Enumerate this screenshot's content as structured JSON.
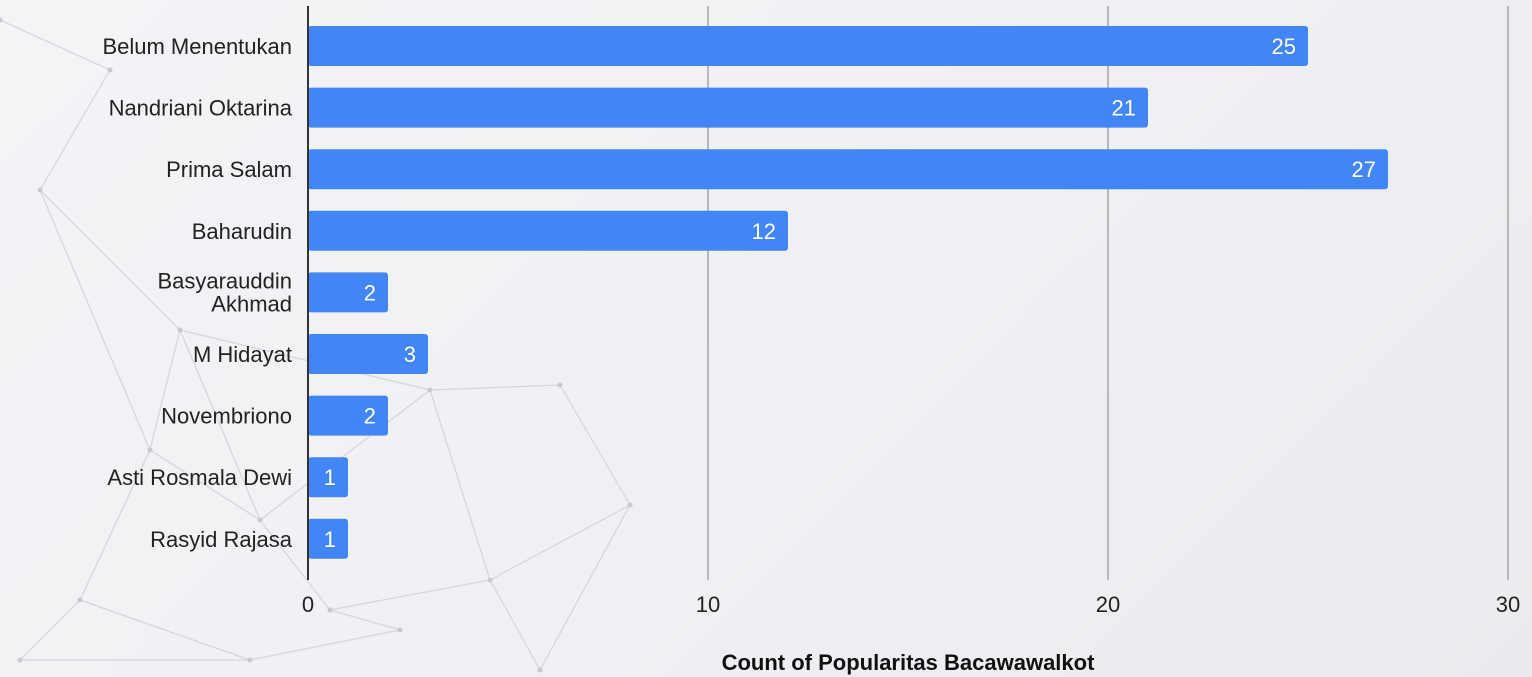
{
  "chart_data": {
    "type": "bar",
    "orientation": "horizontal",
    "categories": [
      "Belum Menentukan",
      "Nandriani Oktarina",
      "Prima Salam",
      "Baharudin",
      "Basyarauddin Akhmad",
      "M Hidayat",
      "Novembriono",
      "Asti Rosmala Dewi",
      "Rasyid Rajasa"
    ],
    "values": [
      25,
      21,
      27,
      12,
      2,
      3,
      2,
      1,
      1
    ],
    "xlabel": "Count of Popularitas Bacawawalkot",
    "ylabel": "",
    "xlim": [
      0,
      30
    ],
    "xticks": [
      0,
      10,
      20,
      30
    ],
    "grid": true,
    "data_labels": true,
    "bar_color": "#4285f4"
  }
}
